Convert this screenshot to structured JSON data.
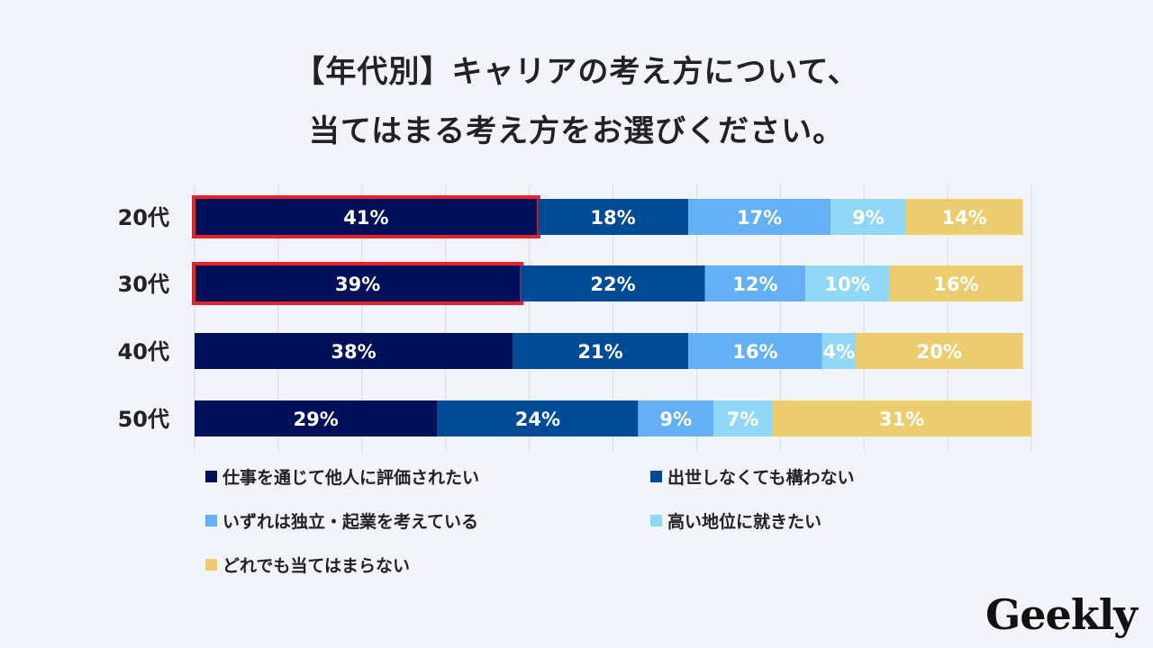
{
  "title_line1": "【年代別】キャリアの考え方について、",
  "title_line2": "当てはまる考え方をお選びください。",
  "logo": "Geekly",
  "chart_data": {
    "type": "bar",
    "orientation": "horizontal-stacked-100",
    "categories": [
      "20代",
      "30代",
      "40代",
      "50代"
    ],
    "series": [
      {
        "name": "仕事を通じて他人に評価されたい",
        "color": "#00115a",
        "values": [
          41,
          39,
          38,
          29
        ]
      },
      {
        "name": "出世しなくても構わない",
        "color": "#004b96",
        "values": [
          18,
          22,
          21,
          24
        ]
      },
      {
        "name": "いずれは独立・起業を考えている",
        "color": "#64b0f6",
        "values": [
          17,
          12,
          16,
          9
        ]
      },
      {
        "name": "高い地位に就きたい",
        "color": "#91d7f8",
        "values": [
          9,
          10,
          4,
          7
        ]
      },
      {
        "name": "どれでも当てはまらない",
        "color": "#ebcd70",
        "values": [
          14,
          16,
          20,
          31
        ]
      }
    ],
    "highlighted": [
      {
        "category": "20代",
        "series": 0
      },
      {
        "category": "30代",
        "series": 0
      }
    ],
    "highlight_color": "#e8212a",
    "xlim": [
      0,
      100
    ],
    "grid": true,
    "legend_position": "bottom"
  }
}
